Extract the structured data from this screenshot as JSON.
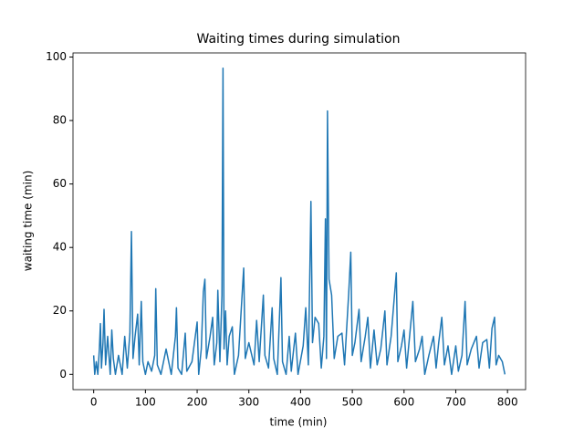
{
  "chart_data": {
    "type": "line",
    "title": "Waiting times during simulation",
    "xlabel": "time (min)",
    "ylabel": "waiting time (min)",
    "x": [
      0,
      2,
      5,
      8,
      11,
      13,
      15,
      18,
      20,
      23,
      27,
      32,
      35,
      38,
      42,
      48,
      55,
      60,
      65,
      70,
      73,
      76,
      80,
      85,
      88,
      92,
      95,
      100,
      105,
      112,
      118,
      120,
      123,
      130,
      140,
      150,
      158,
      160,
      163,
      170,
      177,
      180,
      190,
      200,
      203,
      208,
      212,
      215,
      218,
      225,
      230,
      233,
      238,
      240,
      244,
      248,
      250,
      252,
      255,
      258,
      262,
      268,
      272,
      280,
      290,
      293,
      300,
      310,
      315,
      320,
      328,
      331,
      338,
      345,
      348,
      355,
      362,
      365,
      372,
      378,
      382,
      390,
      395,
      405,
      410,
      415,
      420,
      423,
      428,
      435,
      440,
      445,
      448,
      450,
      452,
      455,
      460,
      465,
      472,
      480,
      485,
      493,
      497,
      500,
      505,
      513,
      517,
      525,
      530,
      535,
      542,
      548,
      555,
      563,
      567,
      575,
      585,
      588,
      595,
      600,
      605,
      617,
      622,
      630,
      635,
      640,
      648,
      657,
      662,
      667,
      673,
      678,
      685,
      692,
      700,
      705,
      712,
      718,
      722,
      730,
      740,
      745,
      752,
      760,
      765,
      770,
      775,
      778,
      783,
      790,
      795
    ],
    "series": [
      {
        "name": "waiting time",
        "color": "#1f77b4",
        "values": [
          6,
          0,
          4,
          0,
          8,
          16,
          2,
          10,
          20.5,
          3,
          12,
          0,
          14,
          5,
          0,
          6,
          0,
          12,
          2,
          13,
          45,
          5,
          12,
          19,
          3,
          23,
          4,
          0,
          4,
          1,
          6,
          27,
          3,
          0,
          8,
          0,
          12,
          21,
          2,
          0,
          13,
          1,
          4,
          16.5,
          0,
          8,
          26,
          30,
          5,
          12,
          18,
          3,
          10,
          26.5,
          4,
          25,
          96.5,
          8,
          20,
          3,
          12,
          15,
          0,
          6,
          33.5,
          5,
          10,
          3,
          17,
          4,
          25,
          6,
          2,
          21,
          5,
          0,
          30.5,
          4,
          0,
          12,
          1,
          13,
          0,
          9,
          21,
          3,
          54.5,
          10,
          18,
          16,
          2,
          12,
          49,
          5,
          83,
          30,
          25,
          5,
          12,
          13,
          3,
          25.5,
          38.5,
          6,
          10,
          20.5,
          4,
          12,
          18,
          2,
          14,
          3,
          8,
          20,
          3,
          12,
          32,
          4,
          9,
          14,
          2,
          23,
          4,
          8,
          12,
          0,
          6,
          12,
          2,
          10,
          18,
          3,
          9,
          0,
          9,
          1,
          6,
          23,
          3,
          8,
          12,
          2,
          10,
          11,
          2,
          14.5,
          18,
          3,
          6,
          4,
          0
        ]
      }
    ],
    "xlim": [
      -40,
      835
    ],
    "ylim": [
      -4.8,
      101.3
    ],
    "xticks": [
      0,
      100,
      200,
      300,
      400,
      500,
      600,
      700,
      800
    ],
    "yticks": [
      0,
      20,
      40,
      60,
      80,
      100
    ]
  }
}
